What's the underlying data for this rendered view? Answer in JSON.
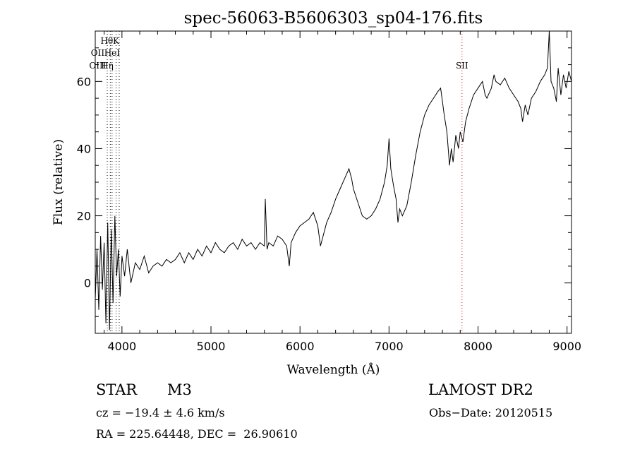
{
  "chart_data": {
    "type": "line",
    "title": "spec-56063-B5606303_sp04-176.fits",
    "xlabel": "Wavelength (Å)",
    "ylabel": "Flux (relative)",
    "xlim": [
      3700,
      9050
    ],
    "ylim": [
      -15,
      75
    ],
    "xticks": [
      4000,
      5000,
      6000,
      7000,
      8000,
      9000
    ],
    "yticks": [
      0,
      20,
      40,
      60
    ],
    "grid": false,
    "series": [
      {
        "color": "#000000",
        "points": [
          [
            3700,
            -5
          ],
          [
            3720,
            10
          ],
          [
            3740,
            -8
          ],
          [
            3760,
            14
          ],
          [
            3780,
            -2
          ],
          [
            3800,
            12
          ],
          [
            3820,
            -12
          ],
          [
            3840,
            18
          ],
          [
            3860,
            -14
          ],
          [
            3880,
            16
          ],
          [
            3900,
            -6
          ],
          [
            3920,
            20
          ],
          [
            3940,
            2
          ],
          [
            3960,
            10
          ],
          [
            3980,
            -4
          ],
          [
            4000,
            8
          ],
          [
            4030,
            2
          ],
          [
            4060,
            10
          ],
          [
            4100,
            0
          ],
          [
            4150,
            6
          ],
          [
            4200,
            4
          ],
          [
            4250,
            8
          ],
          [
            4300,
            3
          ],
          [
            4350,
            5
          ],
          [
            4400,
            6
          ],
          [
            4450,
            5
          ],
          [
            4500,
            7
          ],
          [
            4550,
            6
          ],
          [
            4600,
            7
          ],
          [
            4650,
            9
          ],
          [
            4700,
            6
          ],
          [
            4750,
            9
          ],
          [
            4800,
            7
          ],
          [
            4850,
            10
          ],
          [
            4900,
            8
          ],
          [
            4950,
            11
          ],
          [
            5000,
            9
          ],
          [
            5050,
            12
          ],
          [
            5100,
            10
          ],
          [
            5150,
            9
          ],
          [
            5200,
            11
          ],
          [
            5250,
            12
          ],
          [
            5300,
            10
          ],
          [
            5350,
            13
          ],
          [
            5400,
            11
          ],
          [
            5450,
            12
          ],
          [
            5500,
            10
          ],
          [
            5550,
            12
          ],
          [
            5600,
            11
          ],
          [
            5610,
            25
          ],
          [
            5630,
            10
          ],
          [
            5650,
            12
          ],
          [
            5700,
            11
          ],
          [
            5750,
            14
          ],
          [
            5800,
            13
          ],
          [
            5850,
            11
          ],
          [
            5880,
            5
          ],
          [
            5900,
            12
          ],
          [
            5950,
            15
          ],
          [
            6000,
            17
          ],
          [
            6050,
            18
          ],
          [
            6100,
            19
          ],
          [
            6150,
            21
          ],
          [
            6200,
            17
          ],
          [
            6230,
            11
          ],
          [
            6260,
            14
          ],
          [
            6300,
            18
          ],
          [
            6350,
            21
          ],
          [
            6400,
            25
          ],
          [
            6450,
            28
          ],
          [
            6500,
            31
          ],
          [
            6550,
            34
          ],
          [
            6580,
            31
          ],
          [
            6600,
            28
          ],
          [
            6650,
            24
          ],
          [
            6700,
            20
          ],
          [
            6750,
            19
          ],
          [
            6800,
            20
          ],
          [
            6850,
            22
          ],
          [
            6900,
            25
          ],
          [
            6950,
            30
          ],
          [
            6980,
            35
          ],
          [
            7000,
            43
          ],
          [
            7020,
            34
          ],
          [
            7050,
            29
          ],
          [
            7080,
            25
          ],
          [
            7100,
            18
          ],
          [
            7120,
            22
          ],
          [
            7150,
            20
          ],
          [
            7200,
            23
          ],
          [
            7250,
            30
          ],
          [
            7300,
            38
          ],
          [
            7350,
            45
          ],
          [
            7400,
            50
          ],
          [
            7450,
            53
          ],
          [
            7500,
            55
          ],
          [
            7550,
            57
          ],
          [
            7580,
            58
          ],
          [
            7600,
            54
          ],
          [
            7620,
            50
          ],
          [
            7650,
            45
          ],
          [
            7680,
            35
          ],
          [
            7700,
            40
          ],
          [
            7720,
            36
          ],
          [
            7750,
            44
          ],
          [
            7780,
            40
          ],
          [
            7800,
            45
          ],
          [
            7830,
            42
          ],
          [
            7860,
            48
          ],
          [
            7900,
            52
          ],
          [
            7950,
            56
          ],
          [
            8000,
            58
          ],
          [
            8050,
            60
          ],
          [
            8080,
            56
          ],
          [
            8100,
            55
          ],
          [
            8150,
            58
          ],
          [
            8180,
            62
          ],
          [
            8200,
            60
          ],
          [
            8250,
            59
          ],
          [
            8300,
            61
          ],
          [
            8350,
            58
          ],
          [
            8400,
            56
          ],
          [
            8450,
            54
          ],
          [
            8480,
            52
          ],
          [
            8500,
            48
          ],
          [
            8530,
            53
          ],
          [
            8560,
            50
          ],
          [
            8600,
            55
          ],
          [
            8650,
            57
          ],
          [
            8700,
            60
          ],
          [
            8750,
            62
          ],
          [
            8780,
            64
          ],
          [
            8800,
            75
          ],
          [
            8820,
            60
          ],
          [
            8850,
            58
          ],
          [
            8880,
            54
          ],
          [
            8900,
            64
          ],
          [
            8930,
            56
          ],
          [
            8960,
            62
          ],
          [
            8990,
            58
          ],
          [
            9020,
            63
          ],
          [
            9050,
            60
          ]
        ]
      }
    ],
    "line_markers": [
      {
        "x": 3835,
        "color": "#000000",
        "style": "dotted"
      },
      {
        "x": 3869,
        "color": "#000000",
        "style": "dotted"
      },
      {
        "x": 3889,
        "color": "#000000",
        "style": "dotted"
      },
      {
        "x": 3934,
        "color": "#000000",
        "style": "dotted"
      },
      {
        "x": 3969,
        "color": "#000000",
        "style": "dotted"
      },
      {
        "x": 7820,
        "color": "#cc0000",
        "style": "dotted"
      }
    ],
    "annotations": [
      {
        "text": "Hθ",
        "x": 3830,
        "row": 0
      },
      {
        "text": "K",
        "x": 3934,
        "row": 0
      },
      {
        "text": "OII",
        "x": 3727,
        "row": 1
      },
      {
        "text": "HeI",
        "x": 3889,
        "row": 1
      },
      {
        "text": "OIII",
        "x": 3727,
        "row": 2
      },
      {
        "text": "Hη",
        "x": 3835,
        "row": 2
      },
      {
        "text": "SII",
        "x": 7820,
        "row": 2
      }
    ]
  },
  "info": {
    "class_label": "STAR",
    "subclass": "M3",
    "survey": "LAMOST DR2",
    "cz": "cz = −19.4 ± 4.6 km/s",
    "obs_date": "Obs−Date: 20120515",
    "coords": "RA = 225.64448, DEC =  26.90610"
  }
}
